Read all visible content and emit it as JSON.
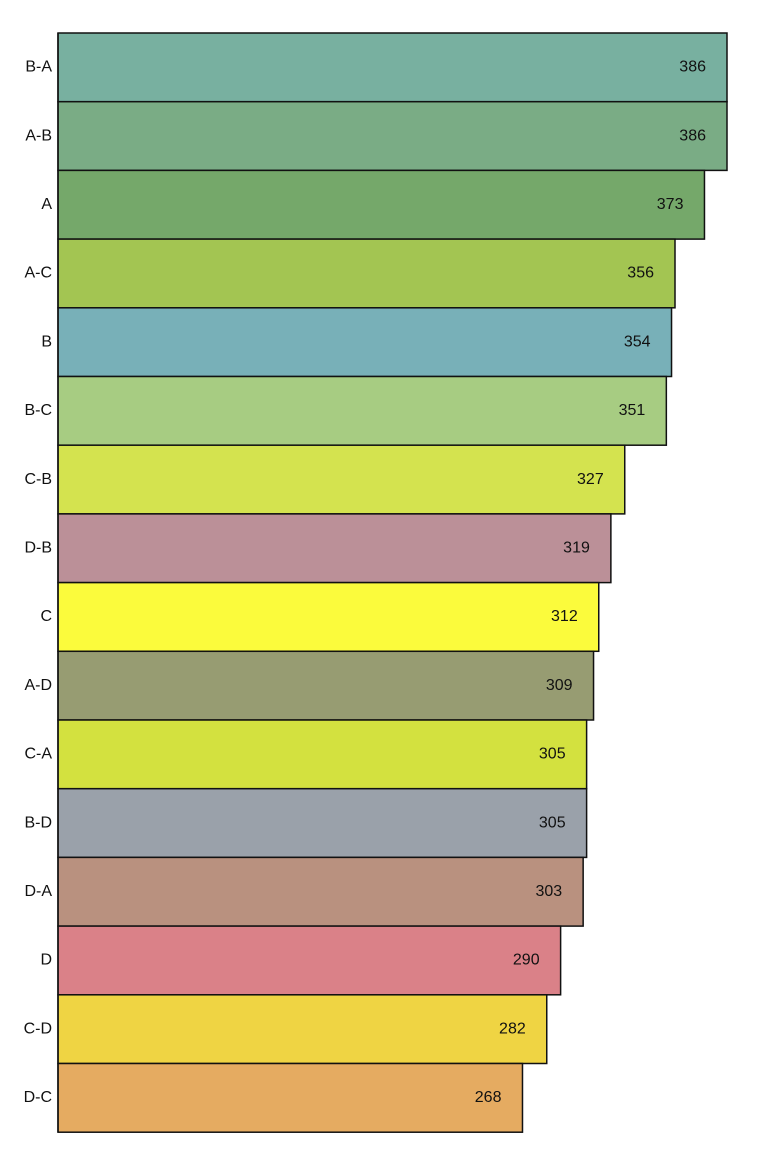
{
  "chart_data": {
    "type": "bar",
    "orientation": "horizontal",
    "categories": [
      "B-A",
      "A-B",
      "A",
      "A-C",
      "B",
      "B-C",
      "C-B",
      "D-B",
      "C",
      "A-D",
      "C-A",
      "B-D",
      "D-A",
      "D",
      "C-D",
      "D-C"
    ],
    "values": [
      386,
      386,
      373,
      356,
      354,
      351,
      327,
      319,
      312,
      309,
      305,
      305,
      303,
      290,
      282,
      268
    ],
    "colors": [
      "#78b0a0",
      "#7aac85",
      "#75a86a",
      "#a3c552",
      "#78b0b8",
      "#a7cc82",
      "#d4e34f",
      "#bb9098",
      "#fbfb3c",
      "#979c72",
      "#d3e13f",
      "#9aa1aa",
      "#b9917f",
      "#da8188",
      "#efd443",
      "#e5ab61"
    ],
    "title": "",
    "xlabel": "",
    "ylabel": "",
    "xlim": [
      0,
      386
    ],
    "grid": false,
    "legend": "none",
    "data_labels": true
  }
}
